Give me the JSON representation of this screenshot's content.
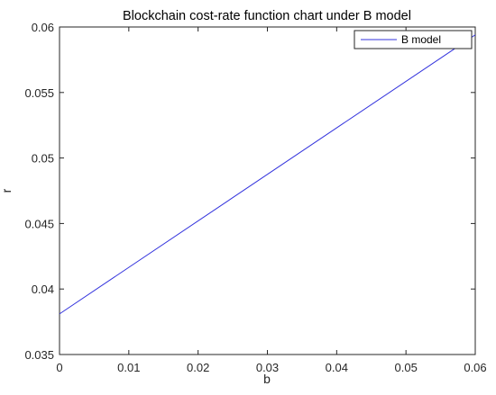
{
  "chart_data": {
    "type": "line",
    "title": "Blockchain cost-rate function chart under B model",
    "xlabel": "b",
    "ylabel": "r",
    "xlim": [
      0,
      0.06
    ],
    "ylim": [
      0.035,
      0.06
    ],
    "xticks": [
      "0",
      "0.01",
      "0.02",
      "0.03",
      "0.04",
      "0.05",
      "0.06"
    ],
    "yticks": [
      "0.035",
      "0.04",
      "0.045",
      "0.05",
      "0.055",
      "0.06"
    ],
    "grid": false,
    "legend_position": "top-right",
    "series": [
      {
        "name": "B model",
        "color": "#3333dd",
        "x": [
          0,
          0.06
        ],
        "y": [
          0.0381,
          0.0594
        ]
      }
    ]
  }
}
